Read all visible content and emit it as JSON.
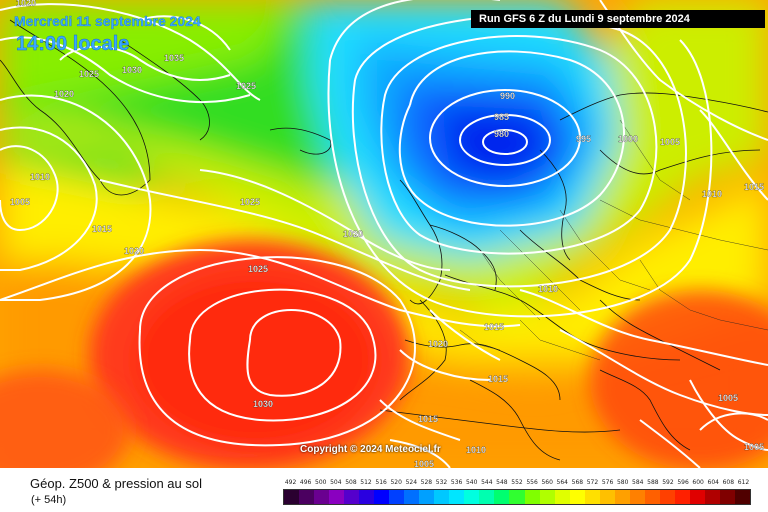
{
  "header": {
    "date": "Mercredi 11 septembre 2024",
    "time": "14:00 locale",
    "run": "Run GFS 6 Z du Lundi 9 septembre 2024"
  },
  "copyright": "Copyright © 2024 Meteociel.fr",
  "footer": {
    "title": "Géop. Z500 & pression au sol",
    "subtitle": "(+ 54h)"
  },
  "scale_ticks": [
    "492",
    "496",
    "500",
    "504",
    "508",
    "512",
    "516",
    "520",
    "524",
    "528",
    "532",
    "536",
    "540",
    "544",
    "548",
    "552",
    "556",
    "560",
    "564",
    "568",
    "572",
    "576",
    "580",
    "584",
    "588",
    "592",
    "596",
    "600",
    "604",
    "608",
    "612"
  ],
  "scale_colors": [
    "#2a0030",
    "#4b0060",
    "#6a0090",
    "#8a00c0",
    "#5500cc",
    "#2a00e0",
    "#0000ff",
    "#0040ff",
    "#0070ff",
    "#00a0ff",
    "#00c8ff",
    "#00e6ff",
    "#00ffe0",
    "#00ffb0",
    "#00ff70",
    "#30ff30",
    "#80ff00",
    "#b0ff00",
    "#e0ff00",
    "#ffff00",
    "#ffe000",
    "#ffc000",
    "#ffa000",
    "#ff8000",
    "#ff6000",
    "#ff4000",
    "#ff2000",
    "#e00000",
    "#b00000",
    "#800000",
    "#500000"
  ],
  "isobar_labels": [
    {
      "v": "1020"
    },
    {
      "v": "1025"
    },
    {
      "v": "1030"
    },
    {
      "v": "1035"
    },
    {
      "v": "1025"
    },
    {
      "v": "1020"
    },
    {
      "v": "1010"
    },
    {
      "v": "1005"
    },
    {
      "v": "1015"
    },
    {
      "v": "1020"
    },
    {
      "v": "1025"
    },
    {
      "v": "1025"
    },
    {
      "v": "1020"
    },
    {
      "v": "1030"
    },
    {
      "v": "990"
    },
    {
      "v": "985"
    },
    {
      "v": "980"
    },
    {
      "v": "995"
    },
    {
      "v": "1000"
    },
    {
      "v": "1005"
    },
    {
      "v": "1010"
    },
    {
      "v": "1015"
    },
    {
      "v": "1010"
    },
    {
      "v": "1015"
    },
    {
      "v": "1020"
    },
    {
      "v": "1015"
    },
    {
      "v": "1015"
    },
    {
      "v": "1005"
    },
    {
      "v": "1010"
    },
    {
      "v": "1005"
    },
    {
      "v": "1005"
    }
  ]
}
